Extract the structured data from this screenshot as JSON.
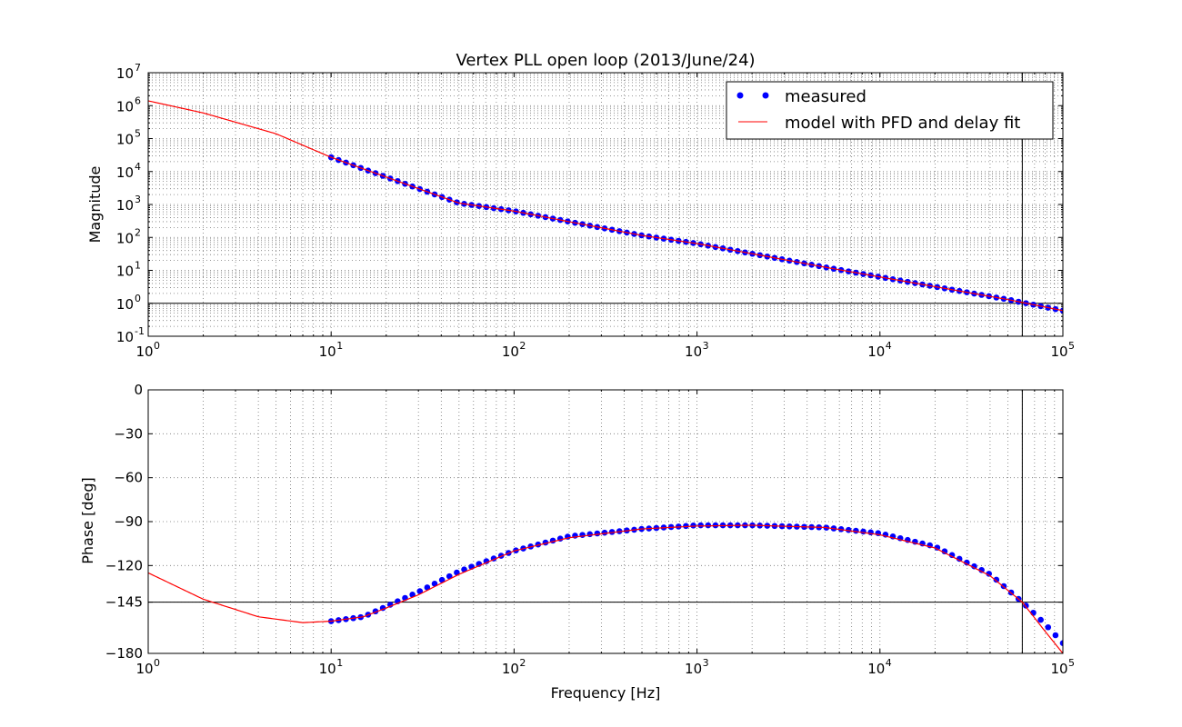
{
  "chart_data": [
    {
      "type": "line",
      "title": "Vertex PLL open loop (2013/June/24)",
      "xlabel": "",
      "ylabel": "Magnitude",
      "x_scale": "log",
      "y_scale": "log",
      "xlim": [
        1,
        100000
      ],
      "ylim": [
        0.1,
        10000000
      ],
      "x_ticks": [
        {
          "base": "10",
          "exp": "0",
          "value": 1
        },
        {
          "base": "10",
          "exp": "1",
          "value": 10
        },
        {
          "base": "10",
          "exp": "2",
          "value": 100
        },
        {
          "base": "10",
          "exp": "3",
          "value": 1000
        },
        {
          "base": "10",
          "exp": "4",
          "value": 10000
        },
        {
          "base": "10",
          "exp": "5",
          "value": 100000
        }
      ],
      "y_ticks": [
        {
          "base": "10",
          "exp": "-1",
          "value": 0.1
        },
        {
          "base": "10",
          "exp": "0",
          "value": 1
        },
        {
          "base": "10",
          "exp": "1",
          "value": 10
        },
        {
          "base": "10",
          "exp": "2",
          "value": 100
        },
        {
          "base": "10",
          "exp": "3",
          "value": 1000
        },
        {
          "base": "10",
          "exp": "4",
          "value": 10000
        },
        {
          "base": "10",
          "exp": "5",
          "value": 100000
        },
        {
          "base": "10",
          "exp": "6",
          "value": 1000000
        },
        {
          "base": "10",
          "exp": "7",
          "value": 10000000
        }
      ],
      "grid": true,
      "reference_lines": {
        "horizontal": 1,
        "vertical": 60000
      },
      "legend": {
        "placement": "top-right",
        "entries": [
          "measured",
          "model with PFD and delay fit"
        ]
      },
      "series": [
        {
          "name": "measured",
          "style": "markers",
          "color": "#0000ff",
          "x": [
            10,
            20,
            50,
            100,
            200,
            500,
            1000,
            2000,
            5000,
            10000,
            20000,
            50000,
            100000
          ],
          "y": [
            27000,
            6800,
            1100,
            630,
            300,
            115,
            65,
            32,
            12.5,
            6.3,
            3.2,
            1.3,
            0.6
          ]
        },
        {
          "name": "model with PFD and delay fit",
          "style": "line",
          "color": "#ff0000",
          "x": [
            1,
            2,
            5,
            10,
            20,
            50,
            100,
            200,
            500,
            1000,
            2000,
            5000,
            10000,
            20000,
            50000,
            100000
          ],
          "y": [
            1400000,
            600000,
            140000,
            27000,
            6800,
            1100,
            630,
            300,
            115,
            65,
            32,
            12.5,
            6.3,
            3.2,
            1.3,
            0.6
          ]
        }
      ]
    },
    {
      "type": "line",
      "title": "",
      "xlabel": "Frequency [Hz]",
      "ylabel": "Phase [deg]",
      "x_scale": "log",
      "y_scale": "linear",
      "xlim": [
        1,
        100000
      ],
      "ylim": [
        -180,
        0
      ],
      "x_ticks": [
        {
          "base": "10",
          "exp": "0",
          "value": 1
        },
        {
          "base": "10",
          "exp": "1",
          "value": 10
        },
        {
          "base": "10",
          "exp": "2",
          "value": 100
        },
        {
          "base": "10",
          "exp": "3",
          "value": 1000
        },
        {
          "base": "10",
          "exp": "4",
          "value": 10000
        },
        {
          "base": "10",
          "exp": "5",
          "value": 100000
        }
      ],
      "y_ticks": [
        {
          "label": "0",
          "value": 0
        },
        {
          "label": "−30",
          "value": -30
        },
        {
          "label": "−60",
          "value": -60
        },
        {
          "label": "−90",
          "value": -90
        },
        {
          "label": "−120",
          "value": -120
        },
        {
          "label": "−145",
          "value": -145
        },
        {
          "label": "−180",
          "value": -180
        }
      ],
      "grid": true,
      "reference_lines": {
        "horizontal": -145,
        "vertical": 60000
      },
      "series": [
        {
          "name": "measured",
          "style": "markers",
          "color": "#0000ff",
          "x": [
            10,
            15,
            20,
            30,
            50,
            100,
            200,
            500,
            1000,
            2000,
            5000,
            10000,
            20000,
            40000,
            60000,
            80000,
            100000
          ],
          "y": [
            -158,
            -155,
            -148,
            -138,
            -124,
            -110,
            -100,
            -95,
            -92.5,
            -92.5,
            -94,
            -98,
            -107,
            -126,
            -145,
            -160,
            -173
          ]
        },
        {
          "name": "model with PFD and delay fit",
          "style": "line",
          "color": "#ff0000",
          "x": [
            1,
            2,
            4,
            7,
            10,
            15,
            20,
            30,
            50,
            100,
            200,
            500,
            1000,
            2000,
            5000,
            10000,
            20000,
            40000,
            60000,
            80000,
            100000
          ],
          "y": [
            -125,
            -143,
            -155,
            -159,
            -158,
            -155,
            -149,
            -140,
            -126,
            -110,
            -101,
            -95,
            -93,
            -92.5,
            -94,
            -99,
            -108,
            -127,
            -145,
            -165,
            -180
          ]
        }
      ]
    }
  ]
}
